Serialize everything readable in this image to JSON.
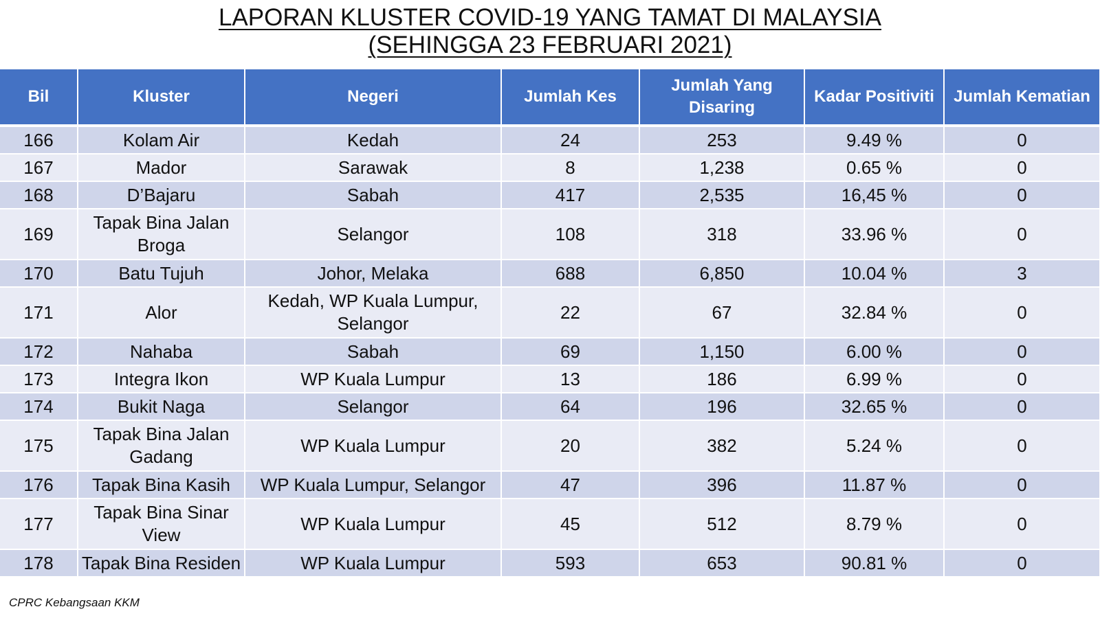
{
  "title": {
    "line1": "LAPORAN KLUSTER COVID-19 YANG TAMAT DI MALAYSIA",
    "line2": "(SEHINGGA  23 FEBRUARI 2021)"
  },
  "table": {
    "headers": [
      "Bil",
      "Kluster",
      "Negeri",
      "Jumlah Kes",
      "Jumlah Yang Disaring",
      "Kadar Positiviti",
      "Jumlah Kematian"
    ],
    "rows": [
      [
        "166",
        "Kolam Air",
        "Kedah",
        "24",
        "253",
        "9.49 %",
        "0"
      ],
      [
        "167",
        "Mador",
        "Sarawak",
        "8",
        "1,238",
        "0.65 %",
        "0"
      ],
      [
        "168",
        "D’Bajaru",
        "Sabah",
        "417",
        "2,535",
        "16,45 %",
        "0"
      ],
      [
        "169",
        "Tapak Bina Jalan Broga",
        "Selangor",
        "108",
        "318",
        "33.96 %",
        "0"
      ],
      [
        "170",
        "Batu Tujuh",
        "Johor, Melaka",
        "688",
        "6,850",
        "10.04 %",
        "3"
      ],
      [
        "171",
        "Alor",
        "Kedah, WP Kuala Lumpur, Selangor",
        "22",
        "67",
        "32.84 %",
        "0"
      ],
      [
        "172",
        "Nahaba",
        "Sabah",
        "69",
        "1,150",
        "6.00 %",
        "0"
      ],
      [
        "173",
        "Integra Ikon",
        "WP Kuala Lumpur",
        "13",
        "186",
        "6.99 %",
        "0"
      ],
      [
        "174",
        "Bukit Naga",
        "Selangor",
        "64",
        "196",
        "32.65 %",
        "0"
      ],
      [
        "175",
        "Tapak Bina Jalan Gadang",
        "WP Kuala Lumpur",
        "20",
        "382",
        "5.24 %",
        "0"
      ],
      [
        "176",
        "Tapak Bina Kasih",
        "WP Kuala Lumpur, Selangor",
        "47",
        "396",
        "11.87 %",
        "0"
      ],
      [
        "177",
        "Tapak Bina Sinar View",
        "WP Kuala Lumpur",
        "45",
        "512",
        "8.79 %",
        "0"
      ],
      [
        "178",
        "Tapak Bina Residen",
        "WP Kuala Lumpur",
        "593",
        "653",
        "90.81 %",
        "0"
      ]
    ]
  },
  "footer": "CPRC Kebangsaan KKM",
  "colors": {
    "header_bg": "#4472c4",
    "row_dark": "#cfd5ea",
    "row_light": "#e9ebf5"
  }
}
